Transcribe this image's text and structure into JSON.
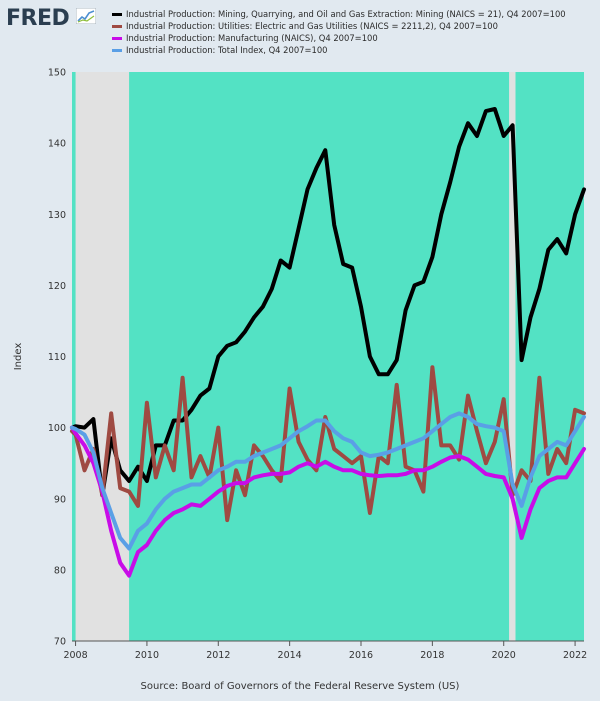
{
  "branding": {
    "logo_text": "FRED"
  },
  "source_text": "Source: Board of Governors of the Federal Reserve System (US)",
  "colors": {
    "background": "#e1e9f0",
    "plot_area": "#53e2c4",
    "recession": "#e1e1e1"
  },
  "chart_data": {
    "type": "line",
    "title": "",
    "xlabel": "",
    "ylabel": "Index",
    "xlim": [
      2007.9,
      2022.25
    ],
    "ylim": [
      70,
      150
    ],
    "yticks": [
      70,
      80,
      90,
      100,
      110,
      120,
      130,
      140,
      150
    ],
    "xticks": [
      2008,
      2010,
      2012,
      2014,
      2016,
      2018,
      2020,
      2022
    ],
    "grid": false,
    "legend_position": "top-left",
    "recessions": [
      [
        2008.0,
        2009.5
      ],
      [
        2020.15,
        2020.33
      ]
    ],
    "series": [
      {
        "name": "Industrial Production: Mining, Quarrying, and Oil and Gas Extraction: Mining (NAICS = 21), Q4 2007=100",
        "color": "#000000",
        "x": [
          2007.9,
          2008.0,
          2008.25,
          2008.5,
          2008.75,
          2009.0,
          2009.25,
          2009.5,
          2009.75,
          2010.0,
          2010.25,
          2010.5,
          2010.75,
          2011.0,
          2011.25,
          2011.5,
          2011.75,
          2012.0,
          2012.25,
          2012.5,
          2012.75,
          2013.0,
          2013.25,
          2013.5,
          2013.75,
          2014.0,
          2014.25,
          2014.5,
          2014.75,
          2015.0,
          2015.25,
          2015.5,
          2015.75,
          2016.0,
          2016.25,
          2016.5,
          2016.75,
          2017.0,
          2017.25,
          2017.5,
          2017.75,
          2018.0,
          2018.25,
          2018.5,
          2018.75,
          2019.0,
          2019.25,
          2019.5,
          2019.75,
          2020.0,
          2020.25,
          2020.5,
          2020.75,
          2021.0,
          2021.25,
          2021.5,
          2021.75,
          2022.0,
          2022.25
        ],
        "values": [
          100,
          100.2,
          100,
          101.2,
          90.5,
          98.5,
          94,
          92.5,
          94.5,
          92.5,
          97.5,
          97.5,
          101,
          101,
          102.5,
          104.5,
          105.5,
          110,
          111.5,
          112,
          113.5,
          115.5,
          117,
          119.5,
          123.5,
          122.5,
          128,
          133.5,
          136.5,
          139,
          128.5,
          123,
          122.5,
          117,
          110,
          107.5,
          107.5,
          109.5,
          116.5,
          120,
          120.5,
          124,
          130,
          134.5,
          139.5,
          142.8,
          141,
          144.5,
          144.8,
          141,
          142.5,
          109.5,
          115.5,
          119.5,
          125,
          126.5,
          124.5,
          130,
          133.5
        ]
      },
      {
        "name": "Industrial Production: Utilities: Electric and Gas Utilities (NAICS = 2211,2), Q4 2007=100",
        "color": "#9f4a42",
        "x": [
          2007.9,
          2008.0,
          2008.25,
          2008.5,
          2008.75,
          2009.0,
          2009.25,
          2009.5,
          2009.75,
          2010.0,
          2010.25,
          2010.5,
          2010.75,
          2011.0,
          2011.25,
          2011.5,
          2011.75,
          2012.0,
          2012.25,
          2012.5,
          2012.75,
          2013.0,
          2013.25,
          2013.5,
          2013.75,
          2014.0,
          2014.25,
          2014.5,
          2014.75,
          2015.0,
          2015.25,
          2015.5,
          2015.75,
          2016.0,
          2016.25,
          2016.5,
          2016.75,
          2017.0,
          2017.25,
          2017.5,
          2017.75,
          2018.0,
          2018.25,
          2018.5,
          2018.75,
          2019.0,
          2019.25,
          2019.5,
          2019.75,
          2020.0,
          2020.25,
          2020.5,
          2020.75,
          2021.0,
          2021.25,
          2021.5,
          2021.75,
          2022.0,
          2022.25
        ],
        "values": [
          99.5,
          99,
          94,
          97,
          90.5,
          102,
          91.5,
          91,
          89,
          103.5,
          93,
          97.5,
          94,
          107,
          93,
          96,
          93,
          100,
          87,
          94,
          90.5,
          97.5,
          96,
          94,
          92.5,
          105.5,
          98,
          95.5,
          94,
          101.5,
          97,
          96,
          95,
          96,
          88,
          96,
          95,
          106,
          94.5,
          94,
          91,
          108.5,
          97.5,
          97.5,
          95.5,
          104.5,
          99.5,
          95,
          98,
          104,
          90.5,
          94,
          92.5,
          107,
          93.5,
          97,
          95,
          102.5,
          102
        ]
      },
      {
        "name": "Industrial Production: Manufacturing (NAICS), Q4 2007=100",
        "color": "#c80ce8",
        "x": [
          2007.9,
          2008.0,
          2008.25,
          2008.5,
          2008.75,
          2009.0,
          2009.25,
          2009.5,
          2009.75,
          2010.0,
          2010.25,
          2010.5,
          2010.75,
          2011.0,
          2011.25,
          2011.5,
          2011.75,
          2012.0,
          2012.25,
          2012.5,
          2012.75,
          2013.0,
          2013.25,
          2013.5,
          2013.75,
          2014.0,
          2014.25,
          2014.5,
          2014.75,
          2015.0,
          2015.25,
          2015.5,
          2015.75,
          2016.0,
          2016.25,
          2016.5,
          2016.75,
          2017.0,
          2017.25,
          2017.5,
          2017.75,
          2018.0,
          2018.25,
          2018.5,
          2018.75,
          2019.0,
          2019.25,
          2019.5,
          2019.75,
          2020.0,
          2020.25,
          2020.5,
          2020.75,
          2021.0,
          2021.25,
          2021.5,
          2021.75,
          2022.0,
          2022.25
        ],
        "values": [
          100,
          99.2,
          97.5,
          95,
          91,
          85.5,
          81,
          79.2,
          82.5,
          83.5,
          85.5,
          87,
          88,
          88.5,
          89.2,
          89,
          90,
          91,
          91.8,
          92.2,
          92.2,
          93,
          93.3,
          93.5,
          93.5,
          93.7,
          94.5,
          95,
          94.5,
          95.2,
          94.5,
          94,
          94,
          93.5,
          93.3,
          93.2,
          93.3,
          93.3,
          93.5,
          94,
          94,
          94.5,
          95.2,
          95.8,
          96,
          95.5,
          94.5,
          93.5,
          93.2,
          93,
          90,
          84.5,
          88.5,
          91.5,
          92.5,
          93,
          93,
          95,
          97
        ]
      },
      {
        "name": "Industrial Production: Total Index, Q4 2007=100",
        "color": "#5a9fe6",
        "x": [
          2007.9,
          2008.0,
          2008.25,
          2008.5,
          2008.75,
          2009.0,
          2009.25,
          2009.5,
          2009.75,
          2010.0,
          2010.25,
          2010.5,
          2010.75,
          2011.0,
          2011.25,
          2011.5,
          2011.75,
          2012.0,
          2012.25,
          2012.5,
          2012.75,
          2013.0,
          2013.25,
          2013.5,
          2013.75,
          2014.0,
          2014.25,
          2014.5,
          2014.75,
          2015.0,
          2015.25,
          2015.5,
          2015.75,
          2016.0,
          2016.25,
          2016.5,
          2016.75,
          2017.0,
          2017.25,
          2017.5,
          2017.75,
          2018.0,
          2018.25,
          2018.5,
          2018.75,
          2019.0,
          2019.25,
          2019.5,
          2019.75,
          2020.0,
          2020.25,
          2020.5,
          2020.75,
          2021.0,
          2021.25,
          2021.5,
          2021.75,
          2022.0,
          2022.25
        ],
        "values": [
          100,
          99.8,
          99,
          96.5,
          91.5,
          88,
          84.5,
          83,
          85.5,
          86.5,
          88.5,
          90,
          91,
          91.5,
          92,
          92,
          93,
          94,
          94.5,
          95.2,
          95.2,
          96,
          96.5,
          97,
          97.5,
          98.5,
          99.5,
          100.2,
          101,
          101,
          99.5,
          98.5,
          98,
          96.5,
          96,
          96.2,
          96.5,
          97,
          97.5,
          98,
          98.5,
          99.5,
          100.5,
          101.5,
          102,
          101.5,
          100.5,
          100.2,
          100,
          99.5,
          92,
          89,
          93,
          96,
          97,
          98,
          97.5,
          99.5,
          101.5
        ]
      }
    ]
  }
}
